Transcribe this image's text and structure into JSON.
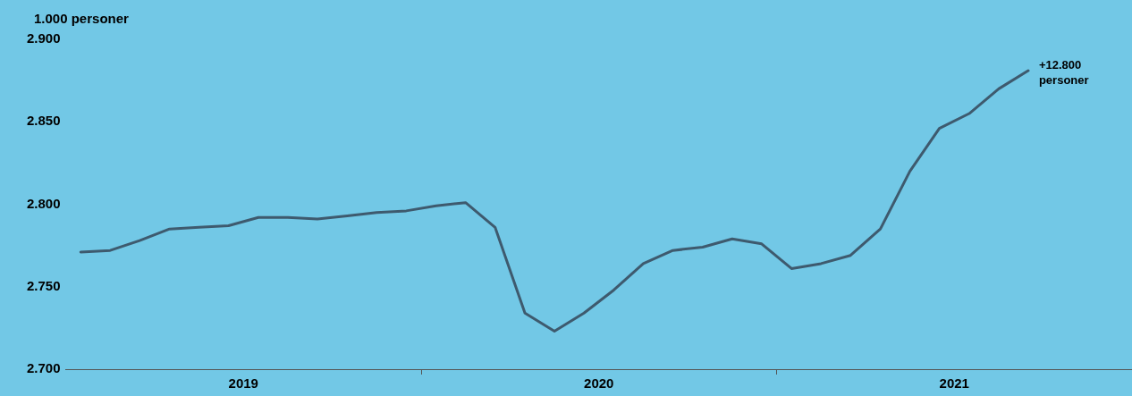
{
  "chart_data": {
    "type": "line",
    "ylabel": "1.000 personer",
    "x": [
      2019.042,
      2019.125,
      2019.208,
      2019.292,
      2019.375,
      2019.458,
      2019.542,
      2019.625,
      2019.708,
      2019.792,
      2019.875,
      2019.958,
      2020.042,
      2020.125,
      2020.208,
      2020.292,
      2020.375,
      2020.458,
      2020.542,
      2020.625,
      2020.708,
      2020.792,
      2020.875,
      2020.958,
      2021.042,
      2021.125,
      2021.208,
      2021.292,
      2021.375,
      2021.458,
      2021.542,
      2021.625,
      2021.708
    ],
    "series": [
      {
        "color": "#3e5a6e",
        "values": [
          2771,
          2772,
          2778,
          2785,
          2786,
          2787,
          2792,
          2792,
          2791,
          2793,
          2795,
          2796,
          2799,
          2801,
          2786,
          2734,
          2723,
          2734,
          2748,
          2764,
          2772,
          2774,
          2779,
          2776,
          2761,
          2764,
          2769,
          2785,
          2820,
          2846,
          2855,
          2870,
          2881
        ]
      }
    ],
    "xlim": [
      2019,
      2022
    ],
    "xticks": [
      {
        "value": 2019.5,
        "label": "2019"
      },
      {
        "value": 2020,
        "label": null
      },
      {
        "value": 2020.5,
        "label": "2020"
      },
      {
        "value": 2021,
        "label": null
      },
      {
        "value": 2021.5,
        "label": "2021"
      }
    ],
    "ylim": [
      2700,
      2900
    ],
    "yticks": [
      {
        "value": 2700,
        "label": "2.700"
      },
      {
        "value": 2750,
        "label": "2.750"
      },
      {
        "value": 2800,
        "label": "2.800"
      },
      {
        "value": 2850,
        "label": "2.850"
      },
      {
        "value": 2900,
        "label": "2.900"
      }
    ],
    "grid": false,
    "legend": false,
    "marker": "none",
    "line_style": "solid",
    "annotations": [
      {
        "text": "+12.800\npersoner",
        "x": 2021.708,
        "y": 2881
      }
    ]
  }
}
